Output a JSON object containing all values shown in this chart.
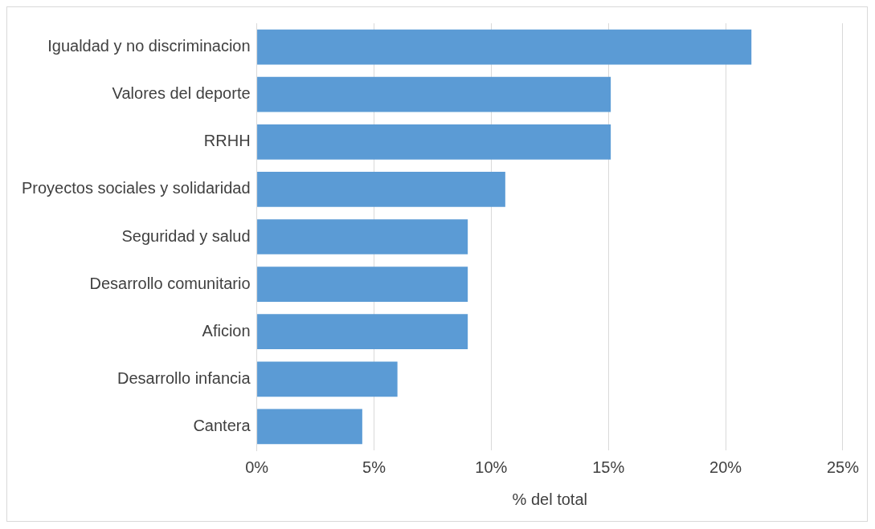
{
  "chart_data": {
    "type": "bar",
    "orientation": "horizontal",
    "xlabel": "% del total",
    "categories": [
      "Igualdad y no discriminacion",
      "Valores del deporte",
      "RRHH",
      "Proyectos sociales y solidaridad",
      "Seguridad y salud",
      "Desarrollo comunitario",
      "Aficion",
      "Desarrollo infancia",
      "Cantera"
    ],
    "values": [
      21.1,
      15.1,
      15.1,
      10.6,
      9.0,
      9.0,
      9.0,
      6.0,
      4.5
    ],
    "color": "#5b9bd5",
    "xlim": [
      0,
      25
    ],
    "xticks": [
      {
        "value": 0,
        "label": "0%"
      },
      {
        "value": 5,
        "label": "5%"
      },
      {
        "value": 10,
        "label": "10%"
      },
      {
        "value": 15,
        "label": "15%"
      },
      {
        "value": 20,
        "label": "20%"
      },
      {
        "value": 25,
        "label": "25%"
      }
    ],
    "grid": "x",
    "legend": false
  }
}
